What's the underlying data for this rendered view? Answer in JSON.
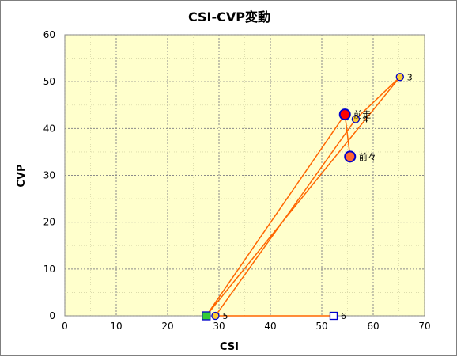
{
  "chart_data": {
    "type": "scatter",
    "title": "CSI-CVP変動",
    "xlabel": "CSI",
    "ylabel": "CVP",
    "xlim": [
      0,
      70
    ],
    "ylim": [
      0,
      60
    ],
    "xticks": [
      0,
      10,
      20,
      30,
      40,
      50,
      60,
      70
    ],
    "yticks": [
      0,
      10,
      20,
      30,
      40,
      50,
      60
    ],
    "grid": true,
    "colors": {
      "plot_background": "#ffffcc",
      "grid": "#8a8a8a",
      "line": "#ff6600",
      "marker_border": "#0000cc"
    },
    "path_points": [
      {
        "label": "前々",
        "x": 55.5,
        "y": 34
      },
      {
        "label": "前走",
        "x": 54.5,
        "y": 43
      },
      {
        "label": "",
        "x": 27.5,
        "y": 0
      },
      {
        "label": "3",
        "x": 65.2,
        "y": 51
      },
      {
        "label": "4",
        "x": 56.6,
        "y": 42
      },
      {
        "label": "5",
        "x": 29.3,
        "y": 0
      },
      {
        "label": "6",
        "x": 52.3,
        "y": 0
      }
    ],
    "markers": [
      {
        "label": "前々",
        "x": 55.5,
        "y": 34,
        "shape": "circle",
        "size": "large",
        "fill": "#ff6633"
      },
      {
        "label": "前走",
        "x": 54.5,
        "y": 43,
        "shape": "circle",
        "size": "large",
        "fill": "#ff0000"
      },
      {
        "label": "",
        "x": 27.5,
        "y": 0,
        "shape": "square",
        "size": "medium",
        "fill": "#33cc33"
      },
      {
        "label": "3",
        "x": 65.2,
        "y": 51,
        "shape": "circle",
        "size": "small",
        "fill": "#ffcc33"
      },
      {
        "label": "4",
        "x": 56.6,
        "y": 42,
        "shape": "circle",
        "size": "small",
        "fill": "#ffcc33"
      },
      {
        "label": "5",
        "x": 29.3,
        "y": 0,
        "shape": "circle",
        "size": "small",
        "fill": "#ffcc33"
      },
      {
        "label": "6",
        "x": 52.3,
        "y": 0,
        "shape": "square",
        "size": "small",
        "fill": "#ffffff"
      }
    ]
  }
}
